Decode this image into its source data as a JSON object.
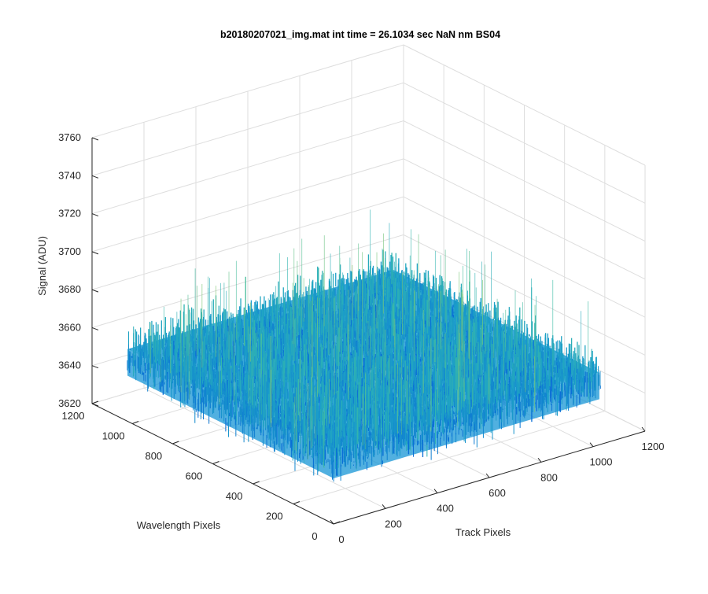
{
  "figure": {
    "title": "b20180207021_img.mat int time = 26.1034 sec  NaN nm BS04"
  },
  "chart_data": {
    "type": "surface",
    "title": "b20180207021_img.mat int time = 26.1034 sec  NaN nm BS04",
    "xlabel": "Track Pixels",
    "ylabel": "Wavelength Pixels",
    "zlabel": "Signal (ADU)",
    "xlim": [
      0,
      1200
    ],
    "ylim": [
      0,
      1200
    ],
    "zlim": [
      3620,
      3760
    ],
    "xticks": [
      0,
      200,
      400,
      600,
      800,
      1000,
      1200
    ],
    "yticks": [
      0,
      200,
      400,
      600,
      800,
      1000,
      1200
    ],
    "zticks": [
      3620,
      3640,
      3660,
      3680,
      3700,
      3720,
      3740,
      3760
    ],
    "grid": true,
    "colormap": "parula",
    "surface_extent": {
      "x": [
        0,
        1024
      ],
      "y": [
        0,
        1024
      ]
    },
    "surface_mean": 3658,
    "surface_noise_range": [
      3630,
      3700
    ],
    "colors": {
      "low": "#0a7fd6",
      "mid": "#2aaec0",
      "high": "#a8cf4f",
      "axis": "#262626",
      "grid": "#dedede"
    }
  }
}
